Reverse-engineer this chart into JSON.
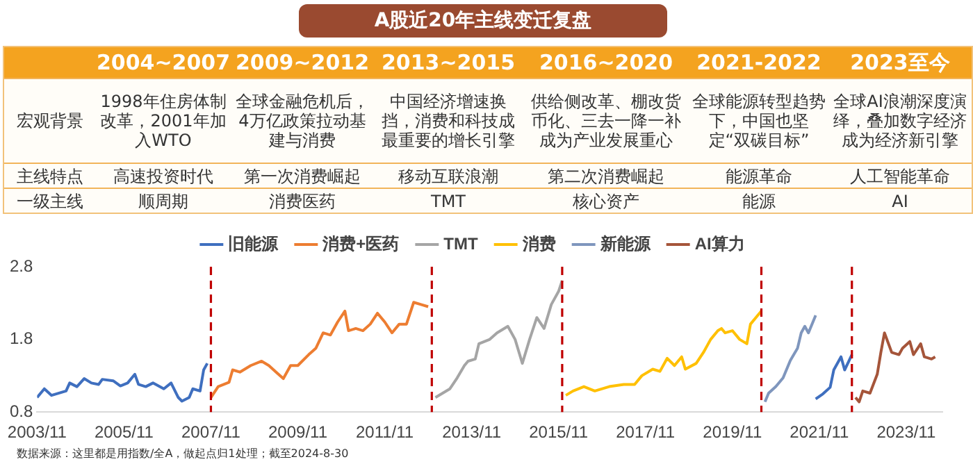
{
  "chart_data": [
    {
      "type": "other",
      "title": "A股近20年主线变迁复盘",
      "annotations": [
        "2004~2007",
        "2009~2012",
        "2013~2015",
        "2016~2020",
        "2021-2022",
        "2023至今",
        "宏观背景",
        "1998年住房体制改革，2001年加入WTO",
        "全球金融危机后，4万亿政策拉动基建与消费",
        "中国经济增速换挡，消费和科技成最重要的增长引擎",
        "供给侧改革、棚改货币化、三去一降一补成为产业发展重心",
        "全球能源转型趋势下，中国也坚定“双碳目标”",
        "全球AI浪潮深度演绎，叠加数字经济成为经济新引擎",
        "主线特点",
        "高速投资时代",
        "第一次消费崛起",
        "移动互联浪潮",
        "第二次消费崛起",
        "能源革命",
        "人工智能革命",
        "一级主线",
        "顺周期",
        "消费医药",
        "TMT",
        "核心资产",
        "能源",
        "AI"
      ]
    },
    {
      "type": "line",
      "legend": "top",
      "marker": "none",
      "grid": false,
      "xlim": [
        "2003-11",
        "2024-09"
      ],
      "xticks": [
        {
          "value": "2003-11",
          "label": "2003/11"
        },
        {
          "value": "2005-11",
          "label": "2005/11"
        },
        {
          "value": "2007-11",
          "label": "2007/11"
        },
        {
          "value": "2009-11",
          "label": "2009/11"
        },
        {
          "value": "2011-11",
          "label": "2011/11"
        },
        {
          "value": "2013-11",
          "label": "2013/11"
        },
        {
          "value": "2015-11",
          "label": "2015/11"
        },
        {
          "value": "2017-11",
          "label": "2017/11"
        },
        {
          "value": "2019-11",
          "label": "2019/11"
        },
        {
          "value": "2021-11",
          "label": "2021/11"
        },
        {
          "value": "2023-11",
          "label": "2023/11"
        }
      ],
      "ylim": [
        0.8,
        2.8
      ],
      "yticks": [
        0.8,
        1.8,
        2.8
      ],
      "series": [
        {
          "name": "旧能源",
          "color": "#3f6fbf",
          "x": [
            "2003-11",
            "2004-01",
            "2004-03",
            "2004-07",
            "2004-08",
            "2004-10",
            "2004-12",
            "2005-02",
            "2005-04",
            "2005-05",
            "2005-08",
            "2005-10",
            "2005-12",
            "2006-02",
            "2006-03",
            "2006-05",
            "2006-07",
            "2006-10",
            "2006-12",
            "2007-02",
            "2007-03",
            "2007-05",
            "2007-06",
            "2007-08",
            "2007-09",
            "2007-10",
            "2015-01",
            "2021-10",
            "2021-12",
            "2022-02",
            "2022-03",
            "2022-05",
            "2022-06",
            "2022-08"
          ],
          "values": [
            1.0,
            1.12,
            1.03,
            1.09,
            1.2,
            1.15,
            1.26,
            1.2,
            1.18,
            1.25,
            1.23,
            1.16,
            1.2,
            1.32,
            1.18,
            1.15,
            1.2,
            1.12,
            1.2,
            1.0,
            0.95,
            1.0,
            1.12,
            1.09,
            1.38,
            1.47,
            null,
            0.98,
            1.05,
            1.14,
            1.38,
            1.56,
            1.38,
            1.59
          ]
        },
        {
          "name": "消费+医药",
          "color": "#ed7d31",
          "x": [
            "2007-11",
            "2008-01",
            "2008-04",
            "2008-05",
            "2008-07",
            "2008-10",
            "2009-01",
            "2009-03",
            "2009-05",
            "2009-07",
            "2009-09",
            "2009-11",
            "2010-02",
            "2010-04",
            "2010-06",
            "2010-08",
            "2010-10",
            "2010-12",
            "2011-01",
            "2011-03",
            "2011-05",
            "2011-07",
            "2011-09",
            "2011-11",
            "2012-01",
            "2012-03",
            "2012-05",
            "2012-07",
            "2012-09",
            "2012-11"
          ],
          "values": [
            1.0,
            1.15,
            1.21,
            1.38,
            1.35,
            1.44,
            1.5,
            1.44,
            1.35,
            1.26,
            1.44,
            1.44,
            1.59,
            1.68,
            1.89,
            1.86,
            2.04,
            2.19,
            1.92,
            1.95,
            1.92,
            2.01,
            2.16,
            2.04,
            1.89,
            2.01,
            2.01,
            2.31,
            2.28,
            2.25
          ]
        },
        {
          "name": "TMT",
          "color": "#a5a5a5",
          "x": [
            "2013-01",
            "2013-03",
            "2013-05",
            "2013-07",
            "2013-09",
            "2013-10",
            "2013-12",
            "2014-01",
            "2014-04",
            "2014-06",
            "2014-09",
            "2014-11",
            "2015-01",
            "2015-03",
            "2015-05",
            "2015-07",
            "2015-09",
            "2015-11",
            "2015-12"
          ],
          "values": [
            1.0,
            1.06,
            1.12,
            1.27,
            1.44,
            1.5,
            1.53,
            1.74,
            1.8,
            1.89,
            1.98,
            1.8,
            1.47,
            1.8,
            2.1,
            1.95,
            2.28,
            2.46,
            2.61
          ]
        },
        {
          "name": "消费",
          "color": "#ffc000",
          "x": [
            "2016-01",
            "2016-03",
            "2016-06",
            "2016-09",
            "2017-01",
            "2017-05",
            "2017-08",
            "2017-10",
            "2018-01",
            "2018-03",
            "2018-05",
            "2018-07",
            "2018-09",
            "2018-10",
            "2019-01",
            "2019-03",
            "2019-05",
            "2019-07",
            "2019-08",
            "2019-09",
            "2019-11",
            "2020-01",
            "2020-03",
            "2020-04",
            "2020-06",
            "2020-07"
          ],
          "values": [
            1.03,
            1.09,
            1.15,
            1.09,
            1.15,
            1.18,
            1.18,
            1.3,
            1.39,
            1.36,
            1.54,
            1.44,
            1.56,
            1.39,
            1.47,
            1.62,
            1.8,
            1.92,
            1.95,
            1.89,
            1.92,
            1.8,
            1.74,
            2.01,
            2.13,
            2.19
          ]
        },
        {
          "name": "新能源",
          "color": "#7f96bd",
          "x": [
            "2020-08",
            "2020-09",
            "2020-11",
            "2021-01",
            "2021-02",
            "2021-03",
            "2021-05",
            "2021-06",
            "2021-07",
            "2021-08",
            "2021-10"
          ],
          "values": [
            0.94,
            1.06,
            1.15,
            1.27,
            1.39,
            1.51,
            1.68,
            1.89,
            1.98,
            1.89,
            2.13
          ]
        },
        {
          "name": "AI算力",
          "color": "#a5553a",
          "x": [
            "2022-09",
            "2022-10",
            "2022-11",
            "2023-01",
            "2023-03",
            "2023-04",
            "2023-05",
            "2023-07",
            "2023-09",
            "2023-10",
            "2023-12",
            "2024-01",
            "2024-03",
            "2024-04",
            "2024-06",
            "2024-07"
          ],
          "values": [
            1.0,
            0.94,
            1.09,
            1.06,
            1.32,
            1.62,
            1.89,
            1.62,
            1.59,
            1.68,
            1.77,
            1.59,
            1.74,
            1.56,
            1.53,
            1.56
          ]
        }
      ],
      "ref_lines": [
        {
          "axis": "x",
          "value": "2007-11",
          "color": "#c00000",
          "line_style": "dashed"
        },
        {
          "axis": "x",
          "value": "2012-12",
          "color": "#c00000",
          "line_style": "dashed"
        },
        {
          "axis": "x",
          "value": "2015-12",
          "color": "#c00000",
          "line_style": "dashed"
        },
        {
          "axis": "x",
          "value": "2020-07",
          "color": "#c00000",
          "line_style": "dashed"
        },
        {
          "axis": "x",
          "value": "2022-08",
          "color": "#c00000",
          "line_style": "dashed"
        }
      ],
      "annotations": [
        "数据来源：这里都是用指数/全A，做起点归1处理；截至2024-8-30"
      ]
    }
  ]
}
